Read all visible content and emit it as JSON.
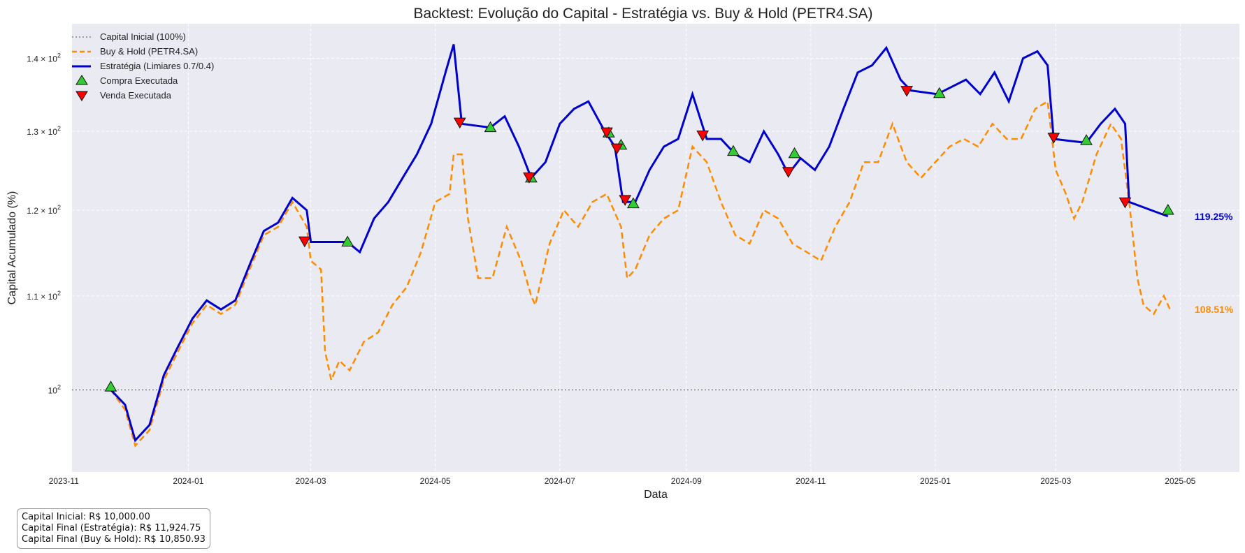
{
  "chart_data": {
    "type": "line",
    "title": "Backtest: Evolução do Capital - Estratégia vs. Buy & Hold (PETR4.SA)",
    "xlabel": "Data",
    "ylabel": "Capital Acumulado (%)",
    "yscale": "log",
    "ylim": [
      92,
      145
    ],
    "xlim": [
      "2023-11-05",
      "2025-05-30"
    ],
    "x_ticks": [
      "2023-11",
      "2024-01",
      "2024-03",
      "2024-05",
      "2024-07",
      "2024-09",
      "2024-11",
      "2025-01",
      "2025-03",
      "2025-05"
    ],
    "y_ticks": [
      {
        "value": 100,
        "base": "10",
        "exp": "2",
        "mult": ""
      },
      {
        "value": 110,
        "base": "10",
        "exp": "2",
        "mult": "1.1 × "
      },
      {
        "value": 120,
        "base": "10",
        "exp": "2",
        "mult": "1.2 × "
      },
      {
        "value": 130,
        "base": "10",
        "exp": "2",
        "mult": "1.3 × "
      },
      {
        "value": 140,
        "base": "10",
        "exp": "2",
        "mult": "1.4 × "
      }
    ],
    "grid": true,
    "legend_position": "top-left",
    "colors": {
      "background": "#eaeaf2",
      "strategy": "#0000cd",
      "buyhold": "#ff8c00",
      "baseline": "#808080",
      "buy_marker": "#32cd32",
      "sell_marker": "#ff0000"
    },
    "baseline": {
      "name": "Capital Inicial (100%)",
      "value": 100
    },
    "series": [
      {
        "name": "Buy & Hold (PETR4.SA)",
        "style": "dashed",
        "points": [
          [
            "2023-11-24",
            100
          ],
          [
            "2023-12-01",
            98
          ],
          [
            "2023-12-06",
            94.5
          ],
          [
            "2023-12-13",
            96
          ],
          [
            "2023-12-20",
            101
          ],
          [
            "2023-12-27",
            104
          ],
          [
            "2024-01-03",
            107
          ],
          [
            "2024-01-10",
            109
          ],
          [
            "2024-01-17",
            108
          ],
          [
            "2024-01-24",
            109
          ],
          [
            "2024-01-31",
            113
          ],
          [
            "2024-02-07",
            117
          ],
          [
            "2024-02-14",
            118
          ],
          [
            "2024-02-21",
            121
          ],
          [
            "2024-02-28",
            118
          ],
          [
            "2024-03-01",
            114
          ],
          [
            "2024-03-06",
            113
          ],
          [
            "2024-03-08",
            104
          ],
          [
            "2024-03-11",
            101
          ],
          [
            "2024-03-15",
            103
          ],
          [
            "2024-03-20",
            102
          ],
          [
            "2024-03-27",
            105
          ],
          [
            "2024-04-03",
            106
          ],
          [
            "2024-04-10",
            109
          ],
          [
            "2024-04-17",
            111
          ],
          [
            "2024-04-24",
            115
          ],
          [
            "2024-05-01",
            121
          ],
          [
            "2024-05-08",
            122
          ],
          [
            "2024-05-10",
            127
          ],
          [
            "2024-05-14",
            127
          ],
          [
            "2024-05-17",
            119
          ],
          [
            "2024-05-22",
            112
          ],
          [
            "2024-05-29",
            112
          ],
          [
            "2024-06-05",
            118
          ],
          [
            "2024-06-12",
            114
          ],
          [
            "2024-06-17",
            110
          ],
          [
            "2024-06-19",
            109
          ],
          [
            "2024-06-26",
            116
          ],
          [
            "2024-07-03",
            120
          ],
          [
            "2024-07-10",
            118
          ],
          [
            "2024-07-17",
            121
          ],
          [
            "2024-07-24",
            122
          ],
          [
            "2024-07-31",
            118
          ],
          [
            "2024-08-03",
            112
          ],
          [
            "2024-08-07",
            113
          ],
          [
            "2024-08-14",
            117
          ],
          [
            "2024-08-21",
            119
          ],
          [
            "2024-08-28",
            120
          ],
          [
            "2024-09-04",
            128
          ],
          [
            "2024-09-11",
            126
          ],
          [
            "2024-09-18",
            121
          ],
          [
            "2024-09-25",
            117
          ],
          [
            "2024-10-02",
            116
          ],
          [
            "2024-10-09",
            120
          ],
          [
            "2024-10-16",
            119
          ],
          [
            "2024-10-23",
            116
          ],
          [
            "2024-10-30",
            115
          ],
          [
            "2024-11-06",
            114
          ],
          [
            "2024-11-13",
            118
          ],
          [
            "2024-11-20",
            121
          ],
          [
            "2024-11-27",
            126
          ],
          [
            "2024-12-04",
            126
          ],
          [
            "2024-12-11",
            131
          ],
          [
            "2024-12-18",
            126
          ],
          [
            "2024-12-25",
            124
          ],
          [
            "2025-01-01",
            126
          ],
          [
            "2025-01-08",
            128
          ],
          [
            "2025-01-15",
            129
          ],
          [
            "2025-01-22",
            128
          ],
          [
            "2025-01-29",
            131
          ],
          [
            "2025-02-05",
            129
          ],
          [
            "2025-02-12",
            129
          ],
          [
            "2025-02-19",
            133
          ],
          [
            "2025-02-25",
            134
          ],
          [
            "2025-03-01",
            125
          ],
          [
            "2025-03-06",
            122
          ],
          [
            "2025-03-10",
            119
          ],
          [
            "2025-03-14",
            121
          ],
          [
            "2025-03-21",
            127
          ],
          [
            "2025-03-28",
            131
          ],
          [
            "2025-04-02",
            129
          ],
          [
            "2025-04-06",
            121
          ],
          [
            "2025-04-10",
            112
          ],
          [
            "2025-04-13",
            109
          ],
          [
            "2025-04-18",
            108
          ],
          [
            "2025-04-23",
            110
          ],
          [
            "2025-04-26",
            108.51
          ]
        ]
      },
      {
        "name": "Estratégia (Limiares 0.7/0.4)",
        "style": "solid",
        "points": [
          [
            "2023-11-24",
            100
          ],
          [
            "2023-12-01",
            98.5
          ],
          [
            "2023-12-06",
            95
          ],
          [
            "2023-12-13",
            96.5
          ],
          [
            "2023-12-20",
            101.5
          ],
          [
            "2023-12-27",
            104.5
          ],
          [
            "2024-01-03",
            107.5
          ],
          [
            "2024-01-10",
            109.5
          ],
          [
            "2024-01-17",
            108.5
          ],
          [
            "2024-01-24",
            109.5
          ],
          [
            "2024-01-31",
            113.5
          ],
          [
            "2024-02-07",
            117.5
          ],
          [
            "2024-02-14",
            118.5
          ],
          [
            "2024-02-21",
            121.5
          ],
          [
            "2024-02-28",
            120
          ],
          [
            "2024-03-01",
            116.2
          ],
          [
            "2024-03-19",
            116.2
          ],
          [
            "2024-03-25",
            115
          ],
          [
            "2024-04-01",
            119
          ],
          [
            "2024-04-08",
            121
          ],
          [
            "2024-04-15",
            124
          ],
          [
            "2024-04-22",
            127
          ],
          [
            "2024-04-29",
            131
          ],
          [
            "2024-05-06",
            138
          ],
          [
            "2024-05-10",
            142
          ],
          [
            "2024-05-14",
            131
          ],
          [
            "2024-05-28",
            130.5
          ],
          [
            "2024-06-04",
            132
          ],
          [
            "2024-06-11",
            128
          ],
          [
            "2024-06-17",
            124
          ],
          [
            "2024-06-24",
            126
          ],
          [
            "2024-07-01",
            131
          ],
          [
            "2024-07-08",
            133
          ],
          [
            "2024-07-15",
            134
          ],
          [
            "2024-07-23",
            130
          ],
          [
            "2024-07-28",
            128
          ],
          [
            "2024-08-01",
            121
          ],
          [
            "2024-08-07",
            121
          ],
          [
            "2024-08-14",
            125
          ],
          [
            "2024-08-21",
            128
          ],
          [
            "2024-08-28",
            129
          ],
          [
            "2024-09-04",
            135
          ],
          [
            "2024-09-11",
            129
          ],
          [
            "2024-09-18",
            129
          ],
          [
            "2024-09-25",
            127
          ],
          [
            "2024-10-02",
            126
          ],
          [
            "2024-10-09",
            130
          ],
          [
            "2024-10-16",
            127
          ],
          [
            "2024-10-21",
            124.5
          ],
          [
            "2024-10-27",
            126.5
          ],
          [
            "2024-11-03",
            125
          ],
          [
            "2024-11-10",
            128
          ],
          [
            "2024-11-17",
            133
          ],
          [
            "2024-11-24",
            138
          ],
          [
            "2024-12-01",
            139
          ],
          [
            "2024-12-08",
            141.5
          ],
          [
            "2024-12-15",
            137
          ],
          [
            "2024-12-20",
            135.5
          ],
          [
            "2025-01-02",
            135
          ],
          [
            "2025-01-09",
            136
          ],
          [
            "2025-01-16",
            137
          ],
          [
            "2025-01-23",
            135
          ],
          [
            "2025-01-30",
            138
          ],
          [
            "2025-02-06",
            134
          ],
          [
            "2025-02-13",
            140
          ],
          [
            "2025-02-20",
            141
          ],
          [
            "2025-02-25",
            139
          ],
          [
            "2025-02-28",
            129
          ],
          [
            "2025-03-16",
            128.5
          ],
          [
            "2025-03-23",
            131
          ],
          [
            "2025-03-30",
            133
          ],
          [
            "2025-04-04",
            131
          ],
          [
            "2025-04-06",
            121
          ],
          [
            "2025-04-25",
            119.25
          ]
        ]
      }
    ],
    "markers": [
      {
        "name": "Compra Executada",
        "symbol": "triangle-up",
        "points": [
          [
            "2023-11-24",
            100.3
          ],
          [
            "2024-03-19",
            116.2
          ],
          [
            "2024-05-28",
            130.5
          ],
          [
            "2024-06-17",
            124
          ],
          [
            "2024-07-25",
            129.8
          ],
          [
            "2024-07-31",
            128.2
          ],
          [
            "2024-08-06",
            120.8
          ],
          [
            "2024-09-24",
            127.4
          ],
          [
            "2024-10-24",
            127.1
          ],
          [
            "2025-01-03",
            135.1
          ],
          [
            "2025-03-16",
            128.8
          ],
          [
            "2025-04-25",
            120
          ]
        ]
      },
      {
        "name": "Venda Executada",
        "symbol": "triangle-down",
        "points": [
          [
            "2024-02-27",
            116.3
          ],
          [
            "2024-05-13",
            131.2
          ],
          [
            "2024-06-16",
            124.1
          ],
          [
            "2024-07-24",
            129.9
          ],
          [
            "2024-07-29",
            127.8
          ],
          [
            "2024-08-02",
            121.3
          ],
          [
            "2024-09-09",
            129.5
          ],
          [
            "2024-10-21",
            124.8
          ],
          [
            "2024-12-18",
            135.5
          ],
          [
            "2025-02-28",
            129.2
          ],
          [
            "2025-04-04",
            121
          ]
        ]
      }
    ],
    "end_labels": [
      {
        "series": "Estratégia (Limiares 0.7/0.4)",
        "text": "119.25%",
        "y": 119.25
      },
      {
        "series": "Buy & Hold (PETR4.SA)",
        "text": "108.51%",
        "y": 108.51
      }
    ]
  },
  "info_box": {
    "line1": "Capital Inicial: R$ 10,000.00",
    "line2": "Capital Final (Estratégia): R$ 11,924.75",
    "line3": "Capital Final (Buy & Hold): R$ 10,850.93"
  }
}
